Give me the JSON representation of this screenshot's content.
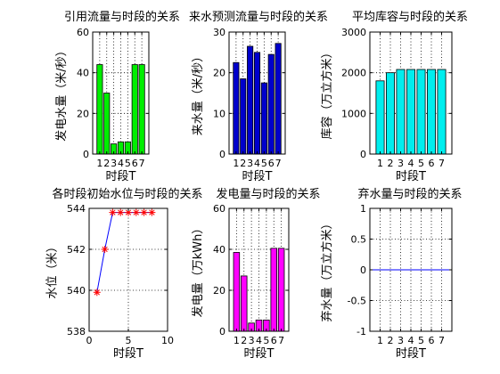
{
  "chart_data": [
    {
      "id": "p1",
      "type": "bar",
      "title": "引用流量与时段的关系",
      "xlabel": "时段T",
      "ylabel": "发电水量（米/秒）",
      "categories": [
        "1",
        "2",
        "3",
        "4",
        "5",
        "6",
        "7"
      ],
      "values": [
        44,
        30,
        5,
        6,
        6,
        44,
        44
      ],
      "ylim": [
        0,
        60
      ],
      "yticks": [
        0,
        20,
        40,
        60
      ],
      "color": "#00ee00",
      "grid": true
    },
    {
      "id": "p2",
      "type": "bar",
      "title": "来水预测流量与时段的关系",
      "xlabel": "时段T",
      "ylabel": "来水量（米/秒）",
      "categories": [
        "1",
        "2",
        "3",
        "4",
        "5",
        "6",
        "7"
      ],
      "values": [
        22.5,
        18.5,
        26.5,
        25,
        17.5,
        24.5,
        27.2
      ],
      "ylim": [
        0,
        30
      ],
      "yticks": [
        0,
        10,
        20,
        30
      ],
      "color": "#0000cc",
      "grid": true
    },
    {
      "id": "p3",
      "type": "bar",
      "title": "平均库容与时段的关系",
      "xlabel": "时段T",
      "ylabel": "库容（万立方米）",
      "categories": [
        "1",
        "2",
        "3",
        "4",
        "5",
        "6",
        "7"
      ],
      "values": [
        1800,
        2000,
        2080,
        2080,
        2080,
        2080,
        2080
      ],
      "ylim": [
        0,
        3000
      ],
      "yticks": [
        0,
        1000,
        2000,
        3000
      ],
      "color": "#00eeee",
      "grid": true
    },
    {
      "id": "p4",
      "type": "line",
      "title": "各时段初始水位与时段的关系",
      "xlabel": "时段T",
      "ylabel": "水位（米）",
      "x": [
        1,
        2,
        3,
        4,
        5,
        6,
        7,
        8
      ],
      "y": [
        539.9,
        542.0,
        543.8,
        543.8,
        543.8,
        543.8,
        543.8,
        543.8
      ],
      "xlim": [
        0,
        10
      ],
      "ylim": [
        538,
        544
      ],
      "xticks": [
        0,
        5,
        10
      ],
      "yticks": [
        538,
        540,
        542,
        544
      ],
      "line_color": "#0000ff",
      "marker": "*",
      "marker_color": "#ff0000",
      "grid": true
    },
    {
      "id": "p5",
      "type": "bar",
      "title": "发电量与时段的关系",
      "xlabel": "时段T",
      "ylabel": "发电量（万kWh）",
      "categories": [
        "1",
        "2",
        "3",
        "4",
        "5",
        "6",
        "7"
      ],
      "values": [
        38.5,
        27,
        4,
        5.5,
        5.5,
        40.5,
        40.5
      ],
      "ylim": [
        0,
        60
      ],
      "yticks": [
        0,
        20,
        40,
        60
      ],
      "color": "#ff00ff",
      "grid": true
    },
    {
      "id": "p6",
      "type": "line",
      "title": "弃水量与时段的关系",
      "xlabel": "时段T",
      "ylabel": "弃水量（万立方米）",
      "categories": [
        "1",
        "2",
        "3",
        "4",
        "5",
        "6",
        "7"
      ],
      "values": [
        0,
        0,
        0,
        0,
        0,
        0,
        0
      ],
      "ylim": [
        -1,
        1
      ],
      "yticks": [
        -1,
        -0.5,
        0,
        0.5,
        1
      ],
      "line_color": "#0000ff",
      "grid": true
    }
  ]
}
